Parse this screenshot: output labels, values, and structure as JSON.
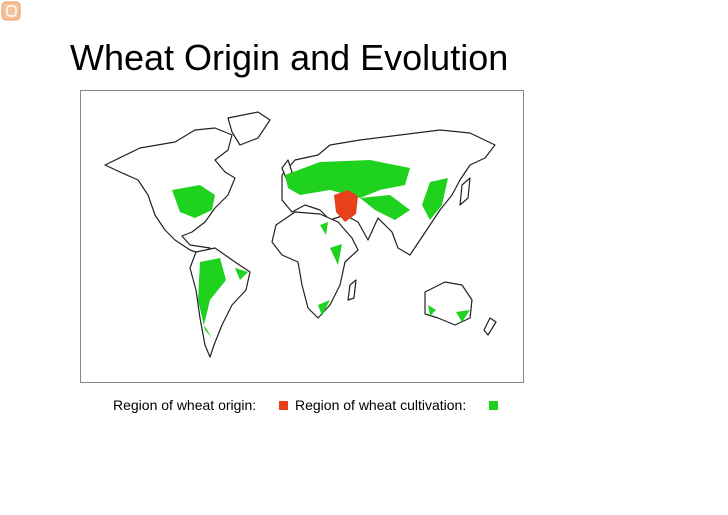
{
  "header": {
    "title": "Wheat Origin and Evolution"
  },
  "legend": {
    "items": [
      {
        "label": "Region of wheat origin:",
        "color": "#e8401c"
      },
      {
        "label": "Region of wheat cultivation:",
        "color": "#1ed21e"
      }
    ]
  }
}
